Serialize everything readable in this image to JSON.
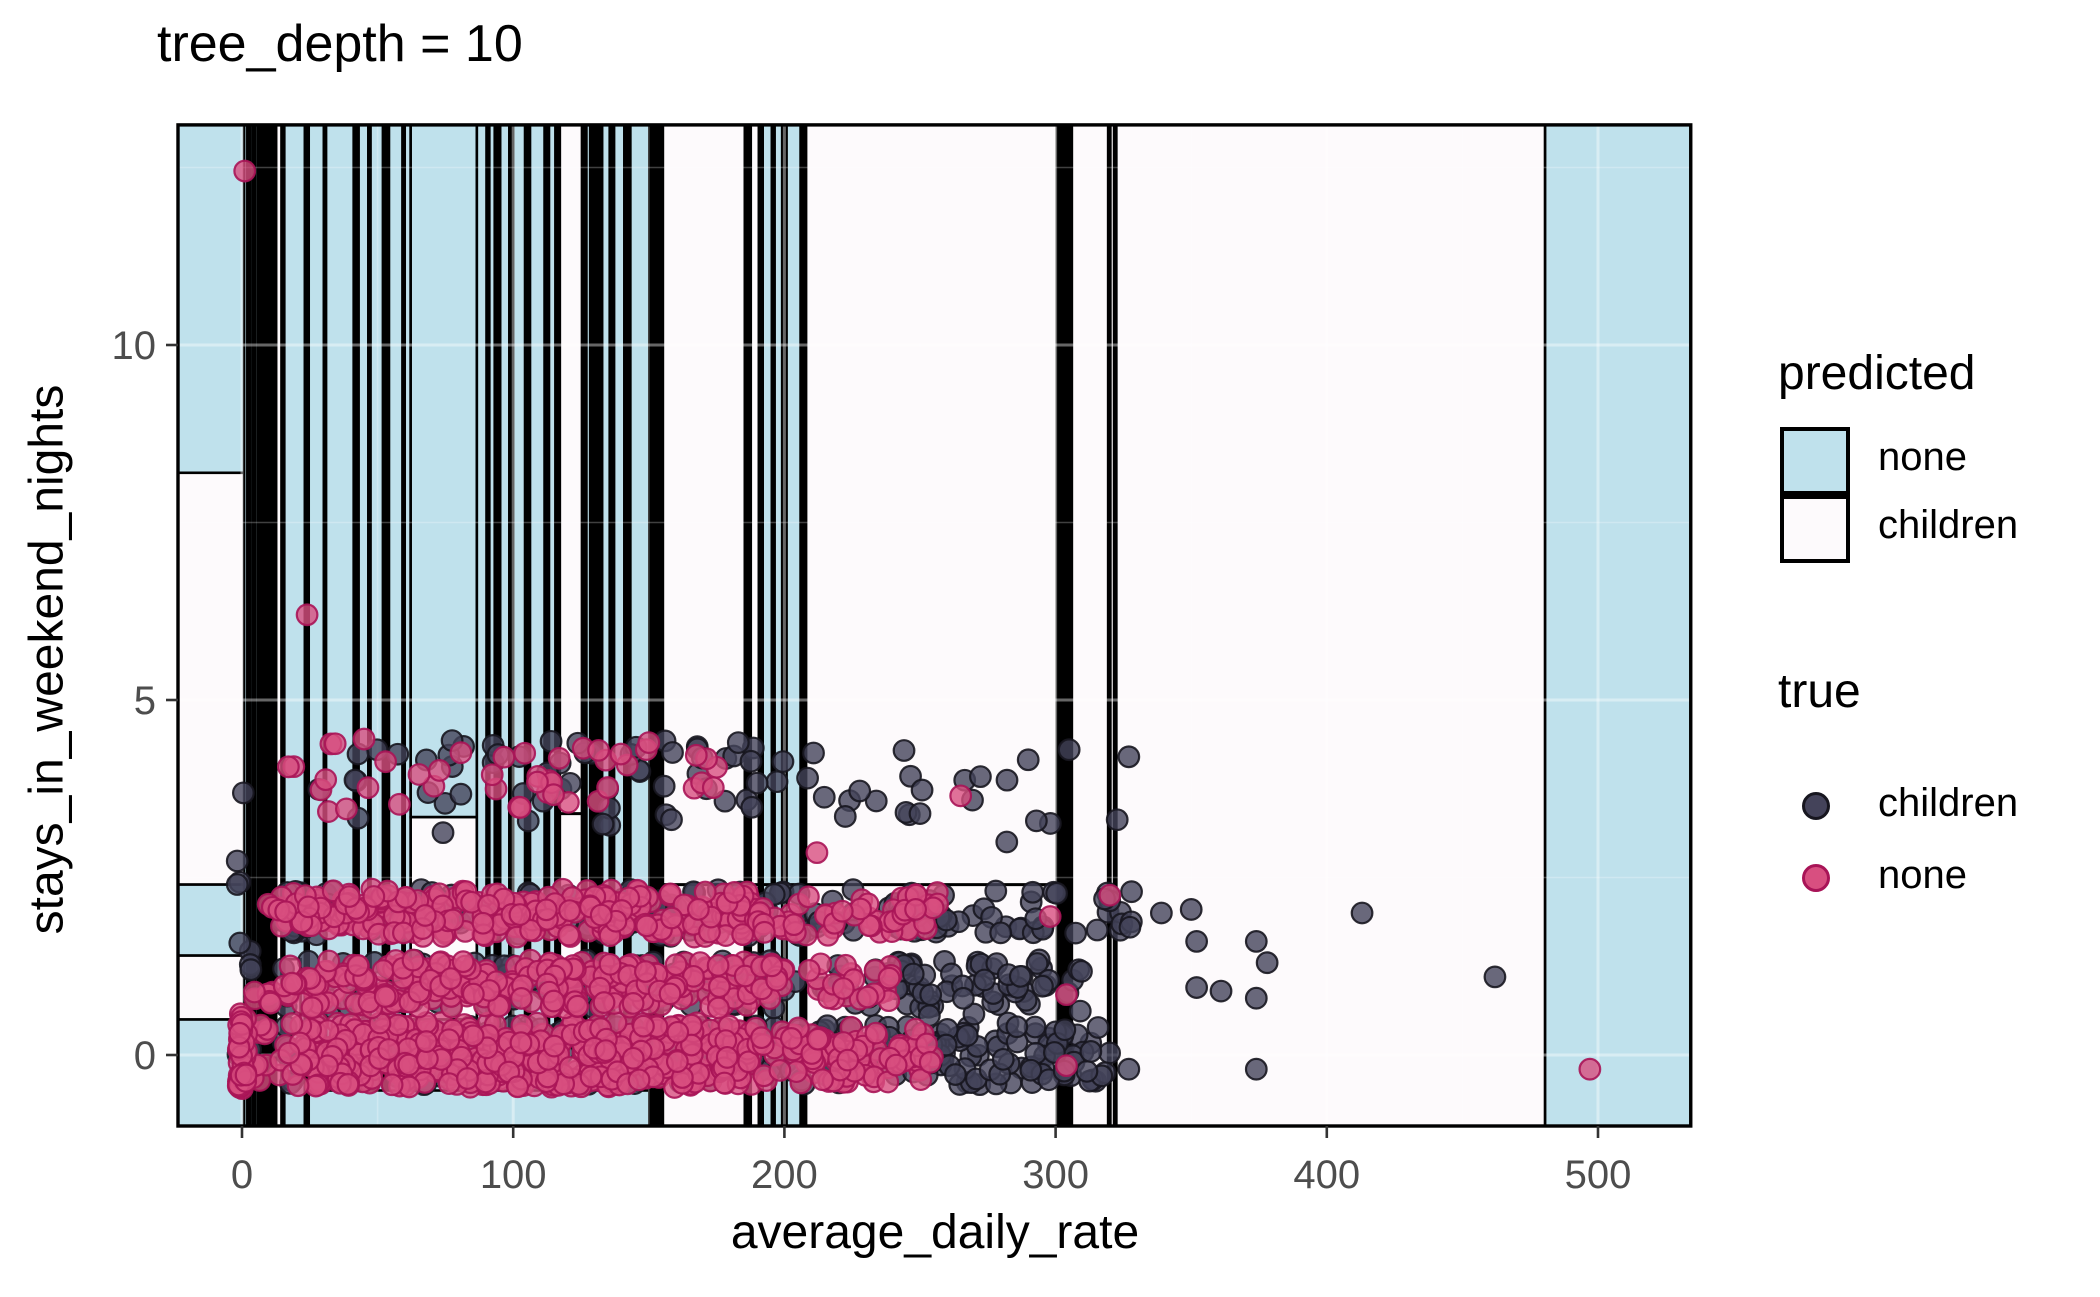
{
  "title": "tree_depth = 10",
  "axes": {
    "x": {
      "label": "average_daily_rate",
      "ticks": [
        "0",
        "100",
        "200",
        "300",
        "400",
        "500"
      ],
      "tick_values": [
        0,
        100,
        200,
        300,
        400,
        500
      ],
      "range": [
        -23.6,
        534.2
      ]
    },
    "y": {
      "label": "stays_in_weekend_nights",
      "ticks": [
        "0",
        "5",
        "10"
      ],
      "tick_values": [
        0,
        5,
        10
      ],
      "range": [
        -1.0,
        13.1
      ]
    }
  },
  "legend": {
    "fill": {
      "title": "predicted",
      "items": [
        {
          "label": "none",
          "color": "#bfe1ec"
        },
        {
          "label": "children",
          "color": "#fdfafc"
        }
      ]
    },
    "point": {
      "title": "true",
      "items": [
        {
          "label": "children",
          "color": "#44435a",
          "stroke": "#17161f"
        },
        {
          "label": "none",
          "color": "#d84f80",
          "stroke": "#a81457"
        }
      ]
    }
  },
  "colors": {
    "region_none": "#bfe1ec",
    "region_children": "#fdfafc",
    "region_border": "#000000",
    "grid": "#ffffff",
    "tick_label": "#4d4d4d",
    "point_children_fill": "#44435a",
    "point_children_stroke": "#17161f",
    "point_none_fill": "#d84f80",
    "point_none_stroke": "#a81457"
  },
  "chart_data": {
    "type": "scatter",
    "subtype": "decision-boundary-map",
    "title": "tree_depth = 10",
    "xlabel": "average_daily_rate",
    "ylabel": "stays_in_weekend_nights",
    "xlim": [
      -23.6,
      534.2
    ],
    "ylim": [
      -1.0,
      13.1
    ],
    "grid": "faint major+minor",
    "legend_position": "right",
    "regions_note": "vertical decision stripes; fill B=predicted none (blue), W=predicted children (white), K=black band; format [x0,x1,y0,y1,fill]",
    "regions": [
      [
        -23.6,
        0.8,
        8.2,
        13.1,
        "B"
      ],
      [
        -23.6,
        0.8,
        2.4,
        8.2,
        "W"
      ],
      [
        -23.6,
        0.8,
        1.4,
        2.4,
        "B"
      ],
      [
        -23.6,
        0.8,
        0.5,
        1.4,
        "W"
      ],
      [
        -23.6,
        0.8,
        -1.0,
        0.5,
        "B"
      ],
      [
        0.8,
        2.0,
        -1,
        13.1,
        "B"
      ],
      [
        2.0,
        3.0,
        -1,
        13.1,
        "K"
      ],
      [
        3.0,
        4.0,
        -1,
        13.1,
        "B"
      ],
      [
        4.0,
        4.8,
        -1,
        13.1,
        "K"
      ],
      [
        4.8,
        5.8,
        -1,
        13.1,
        "B"
      ],
      [
        5.8,
        11.8,
        -1,
        13.1,
        "K"
      ],
      [
        7.2,
        7.8,
        -1,
        13.1,
        "B"
      ],
      [
        9.4,
        10.0,
        -1,
        13.1,
        "B"
      ],
      [
        11.8,
        12.6,
        -1,
        13.1,
        "B"
      ],
      [
        12.6,
        14.6,
        -1,
        13.1,
        "W"
      ],
      [
        14.6,
        15.6,
        -1,
        13.1,
        "K"
      ],
      [
        15.6,
        23.2,
        -1,
        13.1,
        "B"
      ],
      [
        23.2,
        24.6,
        -1,
        13.1,
        "K"
      ],
      [
        24.6,
        30.2,
        -1,
        13.1,
        "B"
      ],
      [
        30.2,
        31.0,
        -1,
        13.1,
        "K"
      ],
      [
        31.0,
        41.2,
        -1,
        13.1,
        "B"
      ],
      [
        41.2,
        43.0,
        -1,
        13.1,
        "K"
      ],
      [
        43.0,
        46.6,
        -1,
        13.1,
        "B"
      ],
      [
        46.6,
        47.4,
        -1,
        13.1,
        "K"
      ],
      [
        47.4,
        52.0,
        -1,
        13.1,
        "B"
      ],
      [
        52.0,
        54.2,
        -1,
        13.1,
        "K"
      ],
      [
        54.2,
        59.2,
        -1,
        13.1,
        "B"
      ],
      [
        59.2,
        60.0,
        -1,
        13.1,
        "K"
      ],
      [
        60.0,
        62.2,
        -1,
        13.1,
        "B"
      ],
      [
        62.2,
        86.6,
        3.35,
        13.1,
        "B"
      ],
      [
        62.2,
        86.6,
        0.5,
        3.35,
        "W"
      ],
      [
        62.2,
        86.6,
        -1.0,
        0.5,
        "B"
      ],
      [
        86.6,
        90.2,
        -1,
        13.1,
        "B"
      ],
      [
        90.2,
        91.2,
        -1,
        13.1,
        "K"
      ],
      [
        91.2,
        93.2,
        -1,
        13.1,
        "B"
      ],
      [
        93.2,
        95.2,
        -1,
        13.1,
        "K"
      ],
      [
        95.2,
        98.6,
        -1,
        13.1,
        "B"
      ],
      [
        98.6,
        100.0,
        -1,
        13.1,
        "K"
      ],
      [
        100.0,
        104.4,
        -1,
        13.1,
        "B"
      ],
      [
        104.4,
        106.2,
        -1,
        13.1,
        "K"
      ],
      [
        106.2,
        111.6,
        -1,
        13.1,
        "B"
      ],
      [
        111.6,
        113.2,
        -1,
        13.1,
        "K"
      ],
      [
        113.2,
        115.6,
        -1,
        13.1,
        "B"
      ],
      [
        115.6,
        117.2,
        -1,
        13.1,
        "K"
      ],
      [
        117.2,
        125.4,
        -1,
        13.1,
        "W"
      ],
      [
        125.4,
        127.0,
        -1,
        13.1,
        "K"
      ],
      [
        127.0,
        128.4,
        -1,
        13.1,
        "B"
      ],
      [
        128.4,
        132.8,
        -1,
        13.1,
        "K"
      ],
      [
        132.8,
        135.6,
        -1,
        13.1,
        "B"
      ],
      [
        135.6,
        137.2,
        -1,
        13.1,
        "K"
      ],
      [
        137.2,
        141.0,
        -1,
        13.1,
        "B"
      ],
      [
        141.0,
        143.2,
        -1,
        13.1,
        "K"
      ],
      [
        143.2,
        150.2,
        -1,
        13.1,
        "B"
      ],
      [
        150.2,
        155.2,
        -1,
        13.1,
        "K"
      ],
      [
        155.2,
        185.4,
        -1,
        13.1,
        "W"
      ],
      [
        185.4,
        187.6,
        -1,
        13.1,
        "K"
      ],
      [
        187.6,
        190.6,
        -1,
        13.1,
        "W"
      ],
      [
        190.6,
        192.0,
        -1,
        13.1,
        "K"
      ],
      [
        192.0,
        195.4,
        -1,
        13.1,
        "B"
      ],
      [
        195.4,
        196.4,
        -1,
        13.1,
        "K"
      ],
      [
        196.4,
        199.2,
        -1,
        13.1,
        "B"
      ],
      [
        199.2,
        200.8,
        -1,
        13.1,
        "K"
      ],
      [
        200.8,
        206.0,
        -1,
        13.1,
        "B"
      ],
      [
        206.0,
        208.0,
        -1,
        13.1,
        "K"
      ],
      [
        208.0,
        300.5,
        -1,
        13.1,
        "W"
      ],
      [
        300.5,
        306.0,
        -1,
        13.1,
        "K"
      ],
      [
        306.0,
        319.4,
        -1,
        13.1,
        "W"
      ],
      [
        319.4,
        320.2,
        -1,
        13.1,
        "K"
      ],
      [
        320.2,
        321.6,
        -1,
        13.1,
        "W"
      ],
      [
        321.6,
        322.4,
        -1,
        13.1,
        "K"
      ],
      [
        322.4,
        480.5,
        -1,
        13.1,
        "W"
      ],
      [
        480.5,
        534.2,
        -1,
        13.1,
        "B"
      ],
      [
        15.6,
        21.6,
        0.05,
        1.35,
        "W"
      ],
      [
        24.6,
        150.2,
        -1.0,
        -0.5,
        "B"
      ]
    ],
    "boundary_lines": [
      {
        "y": 2.4,
        "x0": 155.2,
        "x1": 300.5
      },
      {
        "y": 3.4,
        "x0": 117.2,
        "x1": 125.4
      }
    ],
    "point_clusters_note": "dense jittered scatter summarized as clusters: x uniform in x range, y = y +- jy, n points",
    "point_clusters": [
      {
        "series": "children",
        "x": [
          15,
          320
        ],
        "y": 0,
        "jy": 0.42,
        "n": 300
      },
      {
        "series": "children",
        "x": [
          15,
          310
        ],
        "y": 1,
        "jy": 0.34,
        "n": 180
      },
      {
        "series": "children",
        "x": [
          15,
          330
        ],
        "y": 2,
        "jy": 0.34,
        "n": 190
      },
      {
        "series": "children",
        "x": [
          245,
          315
        ],
        "y": 0.4,
        "jy": 0.75,
        "n": 30
      },
      {
        "series": "children",
        "x": [
          28,
          330
        ],
        "y": 3.7,
        "jy": 0.6,
        "n": 55
      },
      {
        "series": "children",
        "x": [
          30,
          205
        ],
        "y": 4.28,
        "jy": 0.15,
        "n": 24
      },
      {
        "series": "children",
        "x": [
          -2,
          4
        ],
        "y": 1.8,
        "jy": 1.9,
        "n": 12
      },
      {
        "series": "none",
        "x": [
          26,
          190
        ],
        "y": 0,
        "jy": 0.46,
        "n": 420
      },
      {
        "series": "none",
        "x": [
          190,
          258
        ],
        "y": 0,
        "jy": 0.4,
        "n": 90
      },
      {
        "series": "none",
        "x": [
          26,
          190
        ],
        "y": 1,
        "jy": 0.34,
        "n": 250
      },
      {
        "series": "none",
        "x": [
          190,
          240
        ],
        "y": 1,
        "jy": 0.3,
        "n": 35
      },
      {
        "series": "none",
        "x": [
          26,
          190
        ],
        "y": 2,
        "jy": 0.34,
        "n": 250
      },
      {
        "series": "none",
        "x": [
          190,
          258
        ],
        "y": 2,
        "jy": 0.32,
        "n": 55
      },
      {
        "series": "none",
        "x": [
          4,
          26
        ],
        "y": 0,
        "jy": 0.45,
        "n": 25
      },
      {
        "series": "none",
        "x": [
          4,
          26
        ],
        "y": 1,
        "jy": 0.35,
        "n": 18
      },
      {
        "series": "none",
        "x": [
          4,
          26
        ],
        "y": 2,
        "jy": 0.35,
        "n": 18
      },
      {
        "series": "none",
        "x": [
          -1.5,
          2
        ],
        "y": 0.05,
        "jy": 0.55,
        "n": 45
      },
      {
        "series": "none",
        "x": [
          15,
          138
        ],
        "y": 3.9,
        "jy": 0.5,
        "n": 34
      },
      {
        "series": "none",
        "x": [
          138,
          186
        ],
        "y": 3.95,
        "jy": 0.42,
        "n": 9
      }
    ],
    "outlier_points": [
      {
        "series": "none",
        "x": 1,
        "y": 12.45
      },
      {
        "series": "none",
        "x": 24,
        "y": 6.2
      },
      {
        "series": "none",
        "x": 497,
        "y": -0.2
      },
      {
        "series": "none",
        "x": 265,
        "y": 3.65
      },
      {
        "series": "none",
        "x": 212,
        "y": 2.85
      },
      {
        "series": "none",
        "x": 150,
        "y": 4.4
      },
      {
        "series": "none",
        "x": 45,
        "y": 4.45
      },
      {
        "series": "none",
        "x": 320,
        "y": 2.25
      },
      {
        "series": "none",
        "x": 304,
        "y": 0.85
      },
      {
        "series": "none",
        "x": 304,
        "y": -0.15
      },
      {
        "series": "none",
        "x": 298,
        "y": 1.95
      },
      {
        "series": "children",
        "x": 328,
        "y": 2.3
      },
      {
        "series": "children",
        "x": 339,
        "y": 2.0
      },
      {
        "series": "children",
        "x": 350,
        "y": 2.05
      },
      {
        "series": "children",
        "x": 352,
        "y": 1.6
      },
      {
        "series": "children",
        "x": 374,
        "y": 1.6
      },
      {
        "series": "children",
        "x": 352,
        "y": 0.95
      },
      {
        "series": "children",
        "x": 361,
        "y": 0.9
      },
      {
        "series": "children",
        "x": 374,
        "y": 0.8
      },
      {
        "series": "children",
        "x": 378,
        "y": 1.3
      },
      {
        "series": "children",
        "x": 413,
        "y": 2.0
      },
      {
        "series": "children",
        "x": 462,
        "y": 1.1
      },
      {
        "series": "children",
        "x": 374,
        "y": -0.2
      },
      {
        "series": "children",
        "x": 327,
        "y": -0.2
      },
      {
        "series": "children",
        "x": 313,
        "y": 0.05
      },
      {
        "series": "children",
        "x": 305,
        "y": 4.3
      },
      {
        "series": "children",
        "x": 327,
        "y": 4.2
      },
      {
        "series": "children",
        "x": 250,
        "y": 3.4
      },
      {
        "series": "children",
        "x": 282,
        "y": 3.0
      },
      {
        "series": "children",
        "x": 183,
        "y": 4.4
      }
    ]
  }
}
